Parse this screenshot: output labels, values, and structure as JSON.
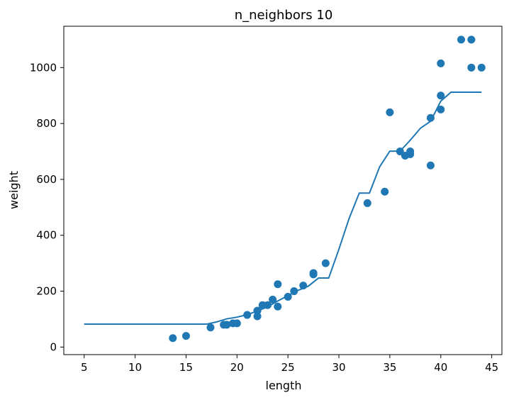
{
  "chart_data": {
    "type": "scatter",
    "title": "n_neighbors 10",
    "xlabel": "length",
    "ylabel": "weight",
    "xlim": [
      3.0,
      46.0
    ],
    "ylim": [
      -27,
      1148
    ],
    "grid": false,
    "x_ticks": [
      5,
      10,
      15,
      20,
      25,
      30,
      35,
      40,
      45
    ],
    "y_ticks": [
      0,
      200,
      400,
      600,
      800,
      1000
    ],
    "x_tick_labels": [
      "5",
      "10",
      "15",
      "20",
      "25",
      "30",
      "35",
      "40",
      "45"
    ],
    "y_tick_labels": [
      "0",
      "200",
      "400",
      "600",
      "800",
      "1000"
    ],
    "color": "#1f77b4",
    "series": [
      {
        "kind": "scatter",
        "points": [
          [
            13.7,
            32
          ],
          [
            15.0,
            40
          ],
          [
            17.4,
            70
          ],
          [
            18.7,
            80
          ],
          [
            19.0,
            80
          ],
          [
            19.6,
            85
          ],
          [
            20.0,
            85
          ],
          [
            21.0,
            115
          ],
          [
            22.0,
            110
          ],
          [
            22.0,
            130
          ],
          [
            22.0,
            130
          ],
          [
            22.5,
            150
          ],
          [
            23.0,
            150
          ],
          [
            23.5,
            170
          ],
          [
            24.0,
            145
          ],
          [
            24.0,
            225
          ],
          [
            25.0,
            180
          ],
          [
            25.6,
            200
          ],
          [
            26.5,
            220
          ],
          [
            27.5,
            260
          ],
          [
            27.5,
            265
          ],
          [
            28.7,
            300
          ],
          [
            32.8,
            515
          ],
          [
            34.5,
            556
          ],
          [
            35.0,
            840
          ],
          [
            36.0,
            700
          ],
          [
            36.5,
            685
          ],
          [
            37.0,
            690
          ],
          [
            37.0,
            700
          ],
          [
            39.0,
            650
          ],
          [
            39.0,
            820
          ],
          [
            40.0,
            850
          ],
          [
            40.0,
            900
          ],
          [
            40.0,
            1015
          ],
          [
            42.0,
            1100
          ],
          [
            43.0,
            1100
          ],
          [
            43.0,
            1000
          ],
          [
            44.0,
            1000
          ]
        ]
      },
      {
        "kind": "line",
        "points": [
          [
            5.0,
            82
          ],
          [
            17.0,
            82
          ],
          [
            18.0,
            90
          ],
          [
            19.0,
            101
          ],
          [
            20.0,
            107
          ],
          [
            21.0,
            116
          ],
          [
            22.0,
            129
          ],
          [
            23.0,
            144
          ],
          [
            24.0,
            165
          ],
          [
            25.0,
            184
          ],
          [
            26.0,
            203
          ],
          [
            27.0,
            218
          ],
          [
            28.0,
            247
          ],
          [
            29.0,
            247
          ],
          [
            30.0,
            350
          ],
          [
            31.0,
            460
          ],
          [
            32.0,
            551
          ],
          [
            33.0,
            551
          ],
          [
            34.0,
            645
          ],
          [
            35.0,
            701
          ],
          [
            36.0,
            701
          ],
          [
            37.0,
            740
          ],
          [
            38.0,
            783
          ],
          [
            39.0,
            808
          ],
          [
            40.0,
            880
          ],
          [
            41.0,
            912
          ],
          [
            44.0,
            912
          ]
        ]
      }
    ]
  }
}
